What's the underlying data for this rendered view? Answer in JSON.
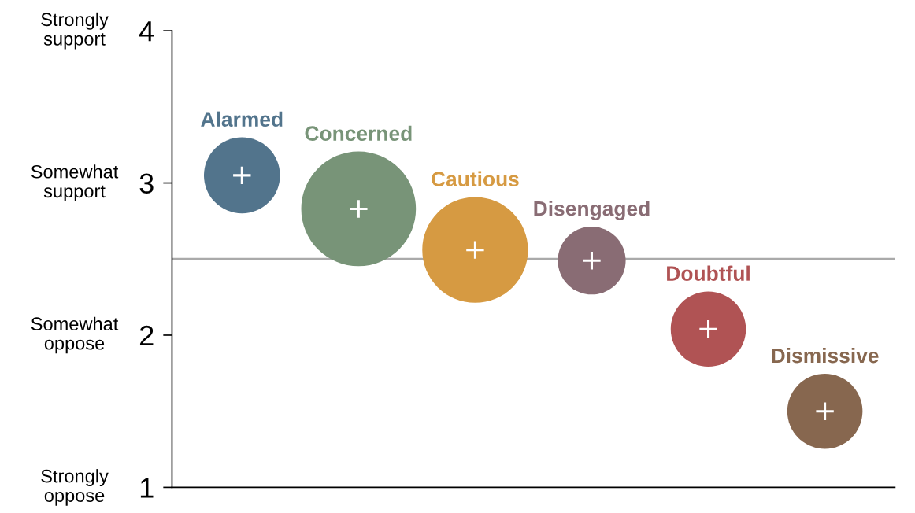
{
  "chart_data": {
    "type": "bubble",
    "categories": [
      null,
      null,
      null,
      null,
      null,
      null
    ],
    "series": [
      {
        "name": "Alarmed",
        "color": "#52748c",
        "values": [
          3.05,
          null,
          null,
          null,
          null,
          null
        ],
        "sizes": [
          0.44,
          null,
          null,
          null,
          null,
          null
        ]
      },
      {
        "name": "Concerned",
        "color": "#789478",
        "values": [
          null,
          2.83,
          null,
          null,
          null,
          null
        ],
        "sizes": [
          null,
          1,
          null,
          null,
          null,
          null
        ]
      },
      {
        "name": "Cautious",
        "color": "#d69a42",
        "values": [
          null,
          null,
          2.56,
          null,
          null,
          null
        ],
        "sizes": [
          null,
          null,
          0.85,
          null,
          null,
          null
        ]
      },
      {
        "name": "Disengaged",
        "color": "#896c74",
        "values": [
          null,
          null,
          null,
          2.49,
          null,
          null
        ],
        "sizes": [
          null,
          null,
          null,
          0.35,
          null,
          null
        ]
      },
      {
        "name": "Doubtful",
        "color": "#b05354",
        "values": [
          null,
          null,
          null,
          null,
          2.04,
          null
        ],
        "sizes": [
          null,
          null,
          null,
          null,
          0.43,
          null
        ]
      },
      {
        "name": "Dismissive",
        "color": "#87674f",
        "values": [
          null,
          null,
          null,
          null,
          null,
          1.5
        ],
        "sizes": [
          null,
          null,
          null,
          null,
          null,
          0.43
        ]
      }
    ],
    "ylim": [
      1,
      4
    ],
    "yticks": [
      1,
      2,
      3,
      4
    ],
    "annotations": [
      "Strongly\nsupport",
      "Somewhat\nsupport",
      "Somewhat\noppose",
      "Strongly\noppose"
    ],
    "ref_lines": [
      {
        "axis": "y",
        "value": 2.5,
        "color": "#aaaaaa"
      }
    ],
    "tick_labels": "y",
    "grid": false,
    "legend": false
  }
}
